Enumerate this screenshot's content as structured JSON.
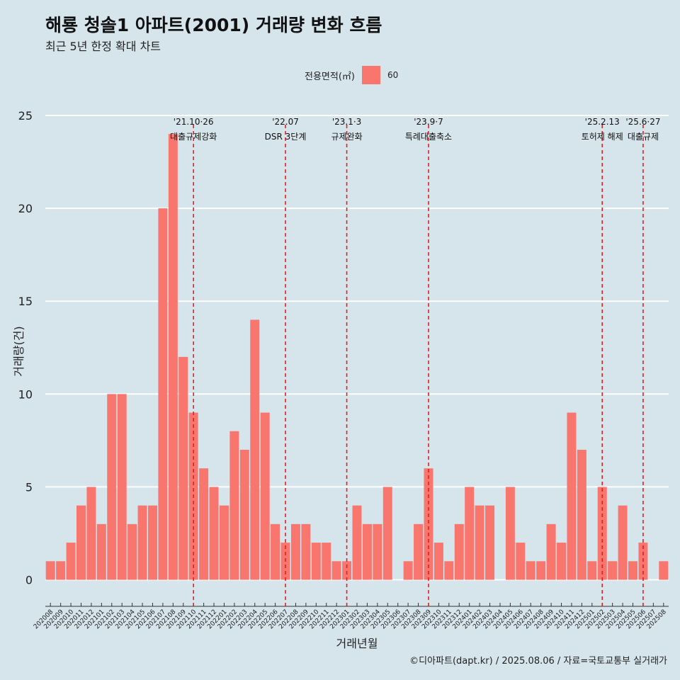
{
  "title": "해룡 청솔1 아파트(2001) 거래량 변화 흐름",
  "subtitle": "최근 5년 한정 확대 차트",
  "caption": "©디아파트(dapt.kr) / 2025.08.06 / 자료=국토교통부 실거래가",
  "legend": {
    "title": "전용면적(㎡)",
    "item": "60"
  },
  "colors": {
    "bar": "#f8766d",
    "background": "#d6e4ec",
    "grid": "#ffffff",
    "event_line": "#e0201b"
  },
  "chart_data": {
    "type": "bar",
    "xlabel": "거래년월",
    "ylabel": "거래량(건)",
    "ylim": [
      -1.2,
      25.8
    ],
    "yticks": [
      0,
      5,
      10,
      15,
      20,
      25
    ],
    "grid": true,
    "legend_position": "top",
    "categories": [
      "202008",
      "202009",
      "202010",
      "202011",
      "202012",
      "202101",
      "202102",
      "202103",
      "202104",
      "202105",
      "202106",
      "202107",
      "202108",
      "202109",
      "202110",
      "202111",
      "202112",
      "202201",
      "202202",
      "202203",
      "202204",
      "202205",
      "202206",
      "202207",
      "202208",
      "202209",
      "202210",
      "202211",
      "202212",
      "202301",
      "202302",
      "202303",
      "202304",
      "202305",
      "202306",
      "202307",
      "202308",
      "202309",
      "202310",
      "202311",
      "202312",
      "202401",
      "202402",
      "202403",
      "202404",
      "202405",
      "202406",
      "202407",
      "202408",
      "202409",
      "202410",
      "202411",
      "202412",
      "202501",
      "202502",
      "202503",
      "202504",
      "202505",
      "202506",
      "202507",
      "202508"
    ],
    "series": [
      {
        "name": "60",
        "values": [
          1,
          1,
          2,
          4,
          5,
          3,
          10,
          10,
          3,
          4,
          4,
          20,
          24,
          12,
          9,
          6,
          5,
          4,
          8,
          7,
          14,
          9,
          3,
          2,
          3,
          3,
          2,
          2,
          1,
          1,
          4,
          3,
          3,
          5,
          0,
          1,
          3,
          6,
          2,
          1,
          3,
          5,
          4,
          4,
          0,
          5,
          2,
          1,
          1,
          3,
          2,
          9,
          7,
          1,
          5,
          1,
          4,
          1,
          2,
          0,
          1
        ]
      }
    ],
    "annotations": [
      {
        "position": 14.0,
        "date": "'21.10·26",
        "label": "대출규제강화"
      },
      {
        "position": 23.0,
        "date": "'22.07",
        "label": "DSR 3단계"
      },
      {
        "position": 29.0,
        "date": "'23.1·3",
        "label": "규제완화"
      },
      {
        "position": 37.0,
        "date": "'23.9·7",
        "label": "특례대출축소"
      },
      {
        "position": 54.0,
        "date": "'25.2.13",
        "label": "토허제 해제"
      },
      {
        "position": 58.0,
        "date": "'25.6·27",
        "label": "대출규제"
      }
    ]
  }
}
